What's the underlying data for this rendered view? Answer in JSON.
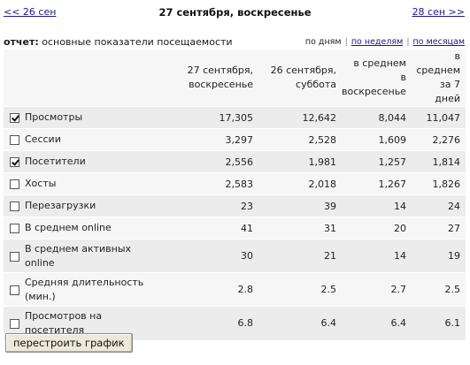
{
  "nav": {
    "prev": "<< 26 сен",
    "title": "27 сентября, воскресенье",
    "next": "28 сен >>"
  },
  "report": {
    "label": "отчет:",
    "name": "основные показатели посещаемости",
    "periods": [
      "по дням",
      "по неделям",
      "по месяцам"
    ]
  },
  "table": {
    "columns": [
      "27 сентября,\nвоскресенье",
      "26 сентября,\nсуббота",
      "в среднем\nв\nвоскресенье",
      "в\nсреднем\nза 7 дней"
    ],
    "rows": [
      {
        "label": "Просмотры",
        "checked": true,
        "values": [
          "17,305",
          "12,642",
          "8,044",
          "11,047"
        ]
      },
      {
        "label": "Сессии",
        "checked": false,
        "values": [
          "3,297",
          "2,528",
          "1,609",
          "2,276"
        ]
      },
      {
        "label": "Посетители",
        "checked": true,
        "values": [
          "2,556",
          "1,981",
          "1,257",
          "1,814"
        ]
      },
      {
        "label": "Хосты",
        "checked": false,
        "values": [
          "2,583",
          "2,018",
          "1,267",
          "1,826"
        ]
      },
      {
        "label": "Перезагрузки",
        "checked": false,
        "values": [
          "23",
          "39",
          "14",
          "24"
        ]
      },
      {
        "label": "В среднем online",
        "checked": false,
        "values": [
          "41",
          "31",
          "20",
          "27"
        ]
      },
      {
        "label": "В среднем активных\nonline",
        "checked": false,
        "values": [
          "30",
          "21",
          "14",
          "19"
        ]
      },
      {
        "label": "Средняя длительность\n(мин.)",
        "checked": false,
        "values": [
          "2.8",
          "2.5",
          "2.7",
          "2.5"
        ]
      },
      {
        "label": "Просмотров на\nпосетителя",
        "checked": false,
        "values": [
          "6.8",
          "6.4",
          "6.4",
          "6.1"
        ]
      }
    ]
  },
  "rebuild_button": "перестроить график"
}
